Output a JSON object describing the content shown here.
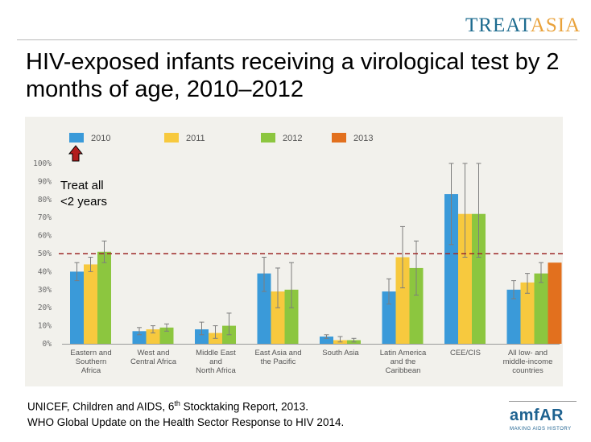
{
  "logo": {
    "treat": "TREAT",
    "asia": "ASIA"
  },
  "title": "HIV-exposed infants receiving a virological test by 2 months of age, 2010–2012",
  "annotation": {
    "line1": "Treat all",
    "line2": "<2 years"
  },
  "source": {
    "line1_pre": "UNICEF, Children and AIDS, 6",
    "line1_sup": "th",
    "line1_post": " Stocktaking Report, 2013.",
    "line2": "WHO Global Update on the Health Sector Response to HIV 2014."
  },
  "amfar": {
    "name": "amfAR",
    "tagline": "MAKING AIDS HISTORY"
  },
  "colors": {
    "2010": "#3a9ad9",
    "2011": "#f7c93e",
    "2012": "#8cc63f",
    "2013": "#e2701e",
    "reference_line": "#9e2a2a",
    "panel": "#f2f1ec"
  },
  "chart_data": {
    "type": "bar",
    "categories": [
      [
        "Eastern and",
        "Southern",
        "Africa"
      ],
      [
        "West and",
        "Central Africa"
      ],
      [
        "Middle East",
        "and",
        "North Africa"
      ],
      [
        "East Asia and",
        "the Pacific"
      ],
      [
        "South Asia"
      ],
      [
        "Latin America",
        "and the",
        "Caribbean"
      ],
      [
        "CEE/CIS"
      ],
      [
        "All low- and",
        "middle-income",
        "countries"
      ]
    ],
    "series": [
      {
        "name": "2010",
        "color": "#3a9ad9",
        "values": [
          40,
          7,
          8,
          39,
          4,
          29,
          83,
          30
        ],
        "error_low": [
          35,
          5,
          5,
          29,
          3,
          22,
          55,
          25
        ],
        "error_high": [
          45,
          9,
          12,
          48,
          5,
          36,
          100,
          35
        ]
      },
      {
        "name": "2011",
        "color": "#f7c93e",
        "values": [
          44,
          8,
          6,
          29,
          2,
          48,
          72,
          34
        ],
        "error_low": [
          40,
          6,
          3,
          20,
          1,
          31,
          48,
          28
        ],
        "error_high": [
          48,
          10,
          10,
          42,
          4,
          65,
          100,
          39
        ]
      },
      {
        "name": "2012",
        "color": "#8cc63f",
        "values": [
          51,
          9,
          10,
          30,
          2,
          42,
          72,
          39
        ],
        "error_low": [
          45,
          7,
          5,
          20,
          1,
          27,
          48,
          34
        ],
        "error_high": [
          57,
          11,
          17,
          45,
          3,
          57,
          100,
          45
        ]
      },
      {
        "name": "2013",
        "color": "#e2701e",
        "values": [
          null,
          null,
          null,
          null,
          null,
          null,
          null,
          45
        ]
      }
    ],
    "reference_line": 50,
    "ylim": [
      0,
      100
    ],
    "yticks": [
      "0%",
      "10%",
      "20%",
      "30%",
      "40%",
      "50%",
      "60%",
      "70%",
      "80%",
      "90%",
      "100%"
    ],
    "legend": [
      "2010",
      "2011",
      "2012",
      "2013"
    ],
    "legend_position": "top-left"
  }
}
